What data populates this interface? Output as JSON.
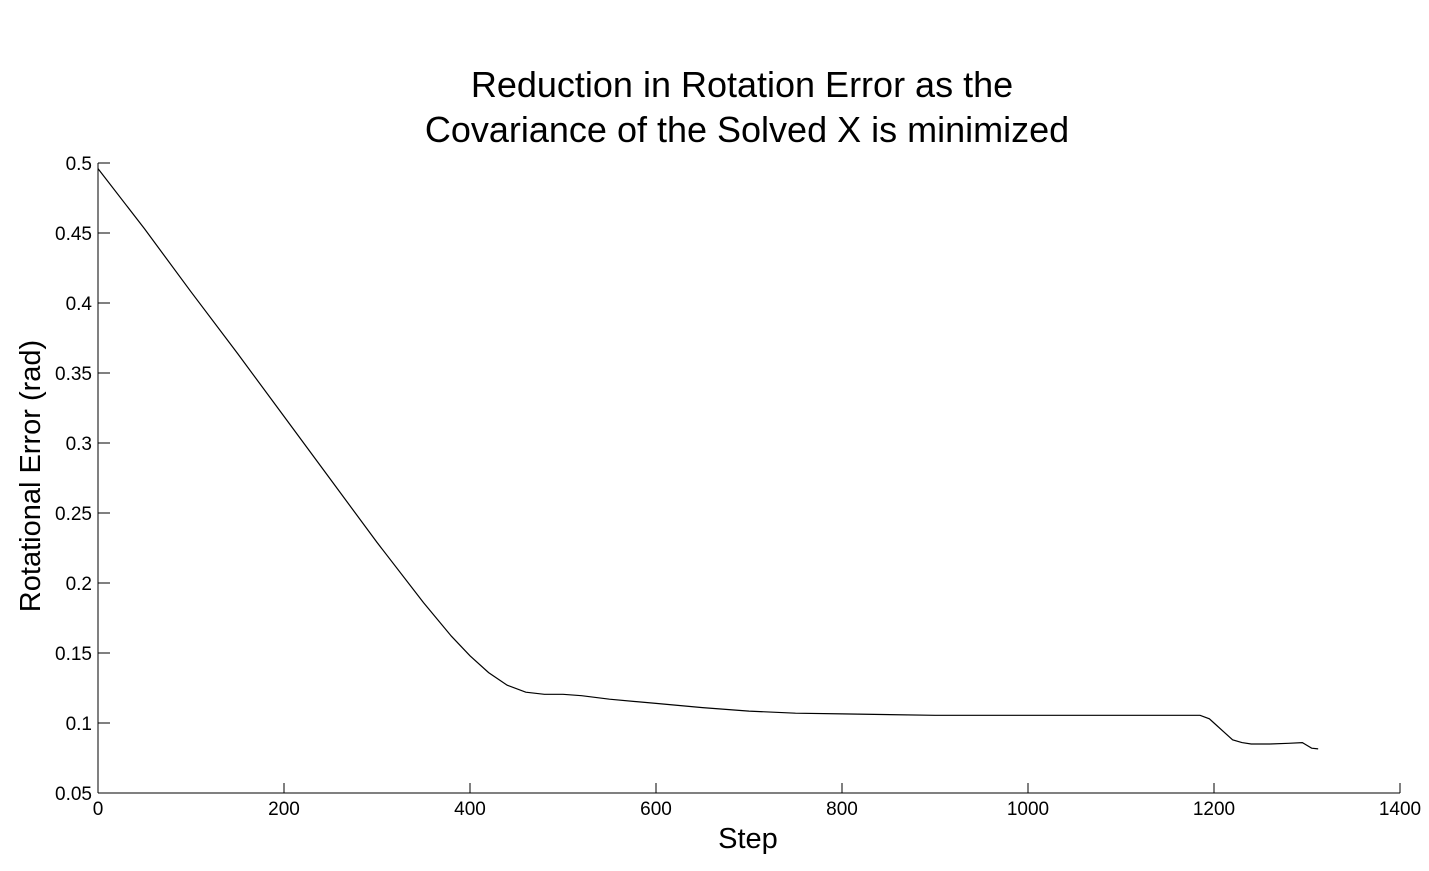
{
  "chart_data": {
    "type": "line",
    "title": [
      "Reduction in Rotation Error as the",
      "Covariance of the Solved X is minimized"
    ],
    "xlabel": "Step",
    "ylabel": "Rotational Error (rad)",
    "xlim": [
      0,
      1400
    ],
    "ylim": [
      0.05,
      0.5
    ],
    "xticks": [
      0,
      200,
      400,
      600,
      800,
      1000,
      1200,
      1400
    ],
    "xtick_labels": [
      "0",
      "200",
      "400",
      "600",
      "800",
      "1000",
      "1200",
      "1400"
    ],
    "yticks": [
      0.05,
      0.1,
      0.15,
      0.2,
      0.25,
      0.3,
      0.35,
      0.4,
      0.45,
      0.5
    ],
    "ytick_labels": [
      "0.05",
      "0.1",
      "0.15",
      "0.2",
      "0.25",
      "0.3",
      "0.35",
      "0.4",
      "0.45",
      "0.5"
    ],
    "grid": false,
    "line_color": "#000000",
    "series": [
      {
        "x": [
          0,
          50,
          100,
          150,
          200,
          250,
          300,
          350,
          380,
          400,
          420,
          440,
          460,
          480,
          500,
          520,
          550,
          600,
          650,
          700,
          750,
          800,
          900,
          1000,
          1100,
          1185,
          1195,
          1200,
          1210,
          1220,
          1230,
          1240,
          1260,
          1280,
          1295,
          1300,
          1305,
          1312
        ],
        "y": [
          0.496,
          0.453,
          0.408,
          0.364,
          0.319,
          0.274,
          0.229,
          0.186,
          0.162,
          0.148,
          0.136,
          0.127,
          0.122,
          0.1205,
          0.1205,
          0.1195,
          0.117,
          0.114,
          0.111,
          0.1085,
          0.107,
          0.1065,
          0.1055,
          0.1055,
          0.1055,
          0.1055,
          0.103,
          0.1,
          0.094,
          0.088,
          0.086,
          0.085,
          0.085,
          0.0855,
          0.086,
          0.084,
          0.082,
          0.0815
        ]
      }
    ]
  }
}
